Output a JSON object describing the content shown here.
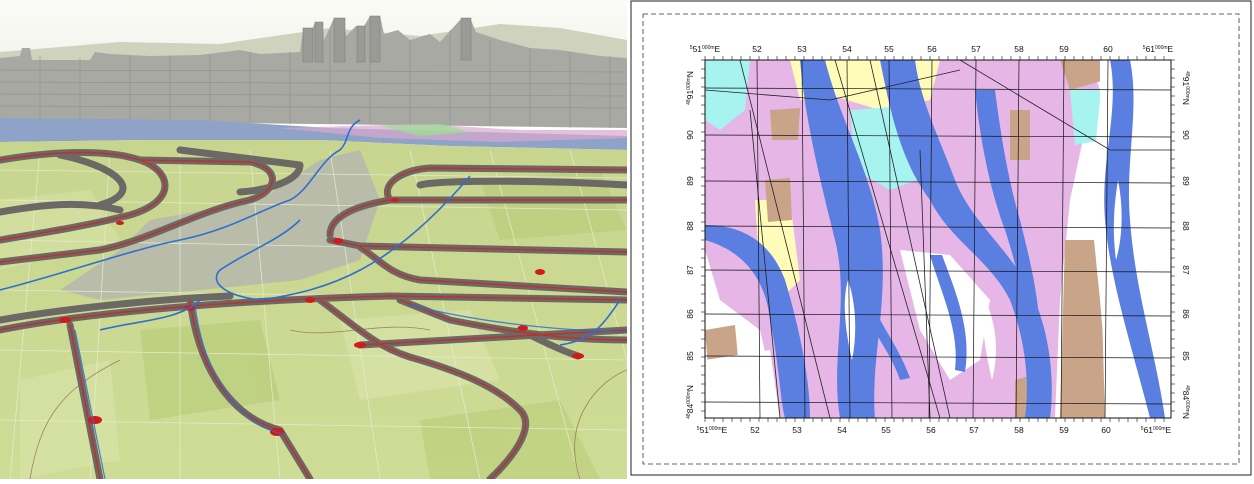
{
  "scene": {
    "description_icon": "city-3d-road-network-icon",
    "colors": {
      "sky": "#f4f5ef",
      "hills": "#c9cdb5",
      "city": "#a9a9a4",
      "water": "#8ea3c7",
      "terrain_light": "#d7e3a6",
      "terrain_dark": "#b9cd79",
      "road_surface": "#6e6a67",
      "road_center": "#c0302a",
      "stream": "#2e6fd0",
      "contour": "#8a5a3a"
    }
  },
  "map": {
    "easting_top": [
      "51",
      "52",
      "53",
      "54",
      "55",
      "56",
      "57",
      "58",
      "59",
      "60",
      "61"
    ],
    "easting_bottom": [
      "51",
      "52",
      "53",
      "54",
      "55",
      "56",
      "57",
      "58",
      "59",
      "60",
      "61"
    ],
    "easting_prefix": "5",
    "easting_superscript": "000m",
    "easting_suffix": "E",
    "northing_left": [
      "84",
      "85",
      "86",
      "87",
      "88",
      "89",
      "90",
      "91"
    ],
    "northing_right": [
      "84",
      "85",
      "86",
      "87",
      "88",
      "89",
      "90",
      "91"
    ],
    "northing_prefix": "48",
    "northing_superscript": "000m",
    "northing_suffix": "N",
    "colors": {
      "water": "#5b7fe0",
      "residential": "#e6b7e6",
      "commercial": "#a7f3f0",
      "open_land": "#fffbb8",
      "industrial": "#c9a489",
      "agriculture": "#b9e8b0",
      "grid": "#111111",
      "frame": "#111111"
    }
  }
}
